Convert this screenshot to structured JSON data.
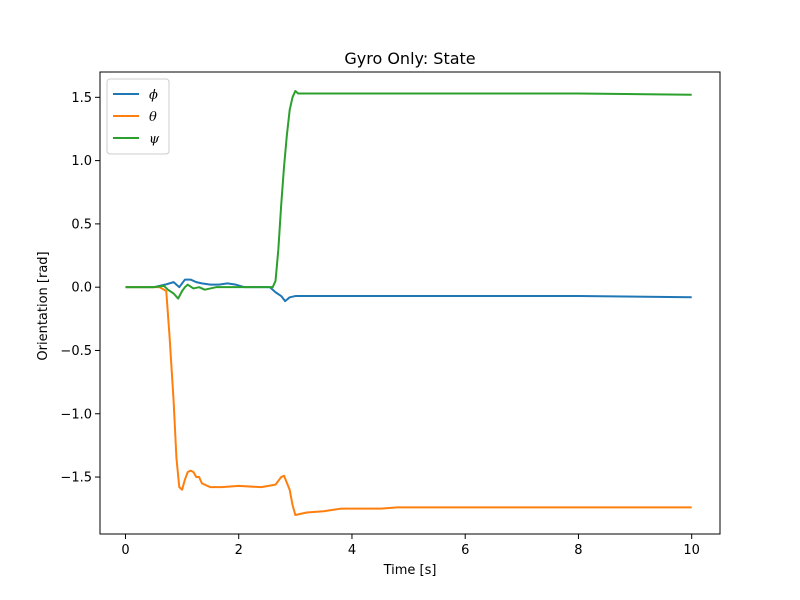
{
  "chart_data": {
    "type": "line",
    "title": "Gyro Only: State",
    "xlabel": "Time [s]",
    "ylabel": "Orientation [rad]",
    "xlim": [
      -0.45,
      10.5
    ],
    "ylim": [
      -1.95,
      1.7
    ],
    "xticks": [
      0,
      2,
      4,
      6,
      8,
      10
    ],
    "xtick_labels": [
      "0",
      "2",
      "4",
      "6",
      "8",
      "10"
    ],
    "yticks": [
      -1.5,
      -1.0,
      -0.5,
      0.0,
      0.5,
      1.0,
      1.5
    ],
    "ytick_labels": [
      "−1.5",
      "−1.0",
      "−0.5",
      "0.0",
      "0.5",
      "1.0",
      "1.5"
    ],
    "grid": false,
    "legend_position": "top-left",
    "series": [
      {
        "name": "ϕ",
        "color": "#1f77b4",
        "x": [
          0,
          0.5,
          0.7,
          0.85,
          0.95,
          1.05,
          1.15,
          1.25,
          1.35,
          1.5,
          1.65,
          1.8,
          1.95,
          2.1,
          2.3,
          2.55,
          2.65,
          2.75,
          2.82,
          2.9,
          3.0,
          3.2,
          4,
          6,
          8,
          10
        ],
        "y": [
          0.0,
          0.0,
          0.02,
          0.04,
          0.0,
          0.06,
          0.06,
          0.04,
          0.03,
          0.02,
          0.02,
          0.03,
          0.02,
          0.0,
          0.0,
          0.0,
          -0.04,
          -0.07,
          -0.11,
          -0.08,
          -0.07,
          -0.07,
          -0.07,
          -0.07,
          -0.07,
          -0.08
        ]
      },
      {
        "name": "θ",
        "color": "#ff7f0e",
        "x": [
          0,
          0.3,
          0.6,
          0.72,
          0.78,
          0.85,
          0.9,
          0.95,
          1.0,
          1.05,
          1.1,
          1.15,
          1.2,
          1.25,
          1.3,
          1.35,
          1.5,
          1.7,
          2.0,
          2.4,
          2.65,
          2.75,
          2.8,
          2.9,
          2.95,
          3.0,
          3.2,
          3.5,
          3.8,
          4.5,
          4.8,
          6,
          8,
          10
        ],
        "y": [
          0.0,
          0.0,
          0.0,
          -0.03,
          -0.4,
          -0.9,
          -1.35,
          -1.58,
          -1.6,
          -1.52,
          -1.46,
          -1.45,
          -1.46,
          -1.5,
          -1.5,
          -1.55,
          -1.58,
          -1.58,
          -1.57,
          -1.58,
          -1.56,
          -1.5,
          -1.49,
          -1.6,
          -1.72,
          -1.8,
          -1.78,
          -1.77,
          -1.75,
          -1.75,
          -1.74,
          -1.74,
          -1.74,
          -1.74
        ]
      },
      {
        "name": "ψ",
        "color": "#2ca02c",
        "x": [
          0,
          0.5,
          0.68,
          0.75,
          0.85,
          0.93,
          1.0,
          1.05,
          1.1,
          1.2,
          1.3,
          1.4,
          1.6,
          2.0,
          2.5,
          2.6,
          2.65,
          2.7,
          2.75,
          2.8,
          2.85,
          2.9,
          2.95,
          3.0,
          3.05,
          3.2,
          4,
          6,
          8,
          10
        ],
        "y": [
          0.0,
          0.0,
          0.01,
          -0.02,
          -0.05,
          -0.09,
          -0.03,
          0.0,
          0.02,
          -0.01,
          0.0,
          -0.02,
          0.0,
          0.0,
          0.0,
          0.0,
          0.05,
          0.3,
          0.65,
          0.95,
          1.2,
          1.4,
          1.5,
          1.55,
          1.53,
          1.53,
          1.53,
          1.53,
          1.53,
          1.52
        ]
      }
    ]
  }
}
